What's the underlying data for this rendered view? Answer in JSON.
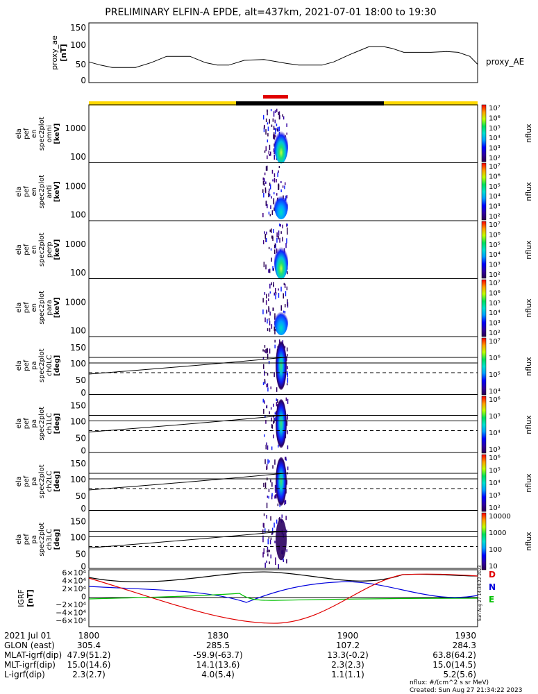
{
  "title": "PRELIMINARY ELFIN-A EPDE, alt=437km, 2021-07-01 18:00 to 19:30",
  "ae_panel": {
    "ylabel": [
      "proxy_ae",
      "[nT]"
    ],
    "yticks": [
      "150",
      "100",
      "50",
      "0"
    ],
    "ylim": [
      0,
      150
    ],
    "legend": "proxy_AE",
    "series": [
      [
        0,
        52
      ],
      [
        3,
        44
      ],
      [
        6,
        38
      ],
      [
        12,
        38
      ],
      [
        16,
        50
      ],
      [
        20,
        66
      ],
      [
        26,
        66
      ],
      [
        30,
        50
      ],
      [
        33,
        44
      ],
      [
        36,
        44
      ],
      [
        40,
        56
      ],
      [
        45,
        58
      ],
      [
        51,
        48
      ],
      [
        54,
        44
      ],
      [
        57,
        44
      ],
      [
        60,
        44
      ],
      [
        63,
        52
      ],
      [
        67,
        70
      ],
      [
        72,
        90
      ],
      [
        76,
        90
      ],
      [
        78,
        86
      ],
      [
        81,
        76
      ],
      [
        88,
        76
      ],
      [
        92,
        78
      ],
      [
        95,
        76
      ],
      [
        98,
        66
      ],
      [
        100,
        46
      ]
    ]
  },
  "status_bar": {
    "colors": {
      "science": "#ffd700",
      "dark": "#000000",
      "marker": "#e00000"
    }
  },
  "energy_panels": [
    {
      "ylabel": [
        "ela",
        "pef",
        "en",
        "spec2plot",
        "omni",
        "[keV]"
      ]
    },
    {
      "ylabel": [
        "ela",
        "pef",
        "en",
        "spec2plot",
        "anti",
        "[keV]"
      ]
    },
    {
      "ylabel": [
        "ela",
        "pef",
        "en",
        "spec2plot",
        "perp",
        "[keV]"
      ]
    },
    {
      "ylabel": [
        "ela",
        "pef",
        "en",
        "spec2plot",
        "para",
        "[keV]"
      ]
    }
  ],
  "energy_yticks": [
    "1000",
    "100"
  ],
  "pitch_panels": [
    {
      "ylabel": [
        "ela",
        "pef",
        "pa",
        "spec2plot",
        "ch0LC",
        "[deg]"
      ]
    },
    {
      "ylabel": [
        "ela",
        "pef",
        "pa",
        "spec2plot",
        "ch1LC",
        "[deg]"
      ]
    },
    {
      "ylabel": [
        "ela",
        "pef",
        "pa",
        "spec2plot",
        "ch2LC",
        "[deg]"
      ]
    },
    {
      "ylabel": [
        "ela",
        "pef",
        "pa",
        "spec2plot",
        "ch3LC",
        "[deg]"
      ]
    }
  ],
  "pitch_yticks": [
    "150",
    "100",
    "50",
    "0"
  ],
  "colorbar_label": "nflux",
  "colorbar_ticks": {
    "bar1": [
      "10⁷",
      "10⁶",
      "10⁵",
      "10⁴",
      "10³",
      "10²"
    ],
    "bar2": [
      "10⁷",
      "10⁶",
      "10⁵",
      "10⁴",
      "10³",
      "10²"
    ],
    "bar3": [
      "10⁷",
      "10⁶",
      "10⁵",
      "10⁴",
      "10³",
      "10²"
    ],
    "bar4": [
      "10⁷",
      "10⁶",
      "10⁵",
      "10⁴",
      "10³",
      "10²"
    ],
    "bar5": [
      "10⁷",
      "10⁶",
      "10⁵",
      "10⁴"
    ],
    "bar6": [
      "10⁶",
      "10⁵",
      "10⁴",
      "10³"
    ],
    "bar7": [
      "10⁶",
      "10⁵",
      "10⁴",
      "10³",
      "10²"
    ],
    "bar8": [
      "10000",
      "1000",
      "100",
      "10"
    ]
  },
  "grf_panel": {
    "ylabel": [
      "IGRF",
      "[nT]"
    ],
    "yticks": [
      "6×10⁴",
      "4×10⁴",
      "2×10⁴",
      "0",
      "−2×10⁴",
      "−4×10⁴",
      "−6×10⁴"
    ],
    "legend": [
      "D",
      "N",
      "E"
    ],
    "colors": {
      "D": "#e00000",
      "N": "#0000dd",
      "E": "#00c000",
      "total": "#000000"
    },
    "stamp": "Sun Aug 27 14:34:22 2023"
  },
  "chart_data": {
    "type": "heatmap",
    "time_range": [
      "2021-07-01 18:00",
      "2021-07-01 19:30"
    ],
    "x_ticks": [
      "1800",
      "1830",
      "1900",
      "1930"
    ],
    "ephemeris": {
      "row_labels": [
        "2021 Jul 01",
        "GLON (east)",
        "MLAT-igrf(dip)",
        "MLT-igrf(dip)",
        "L-igrf(dip)"
      ],
      "columns": [
        [
          "1800",
          "305.4",
          "47.9(51.2)",
          "15.0(14.6)",
          "2.3(2.7)"
        ],
        [
          "1830",
          "285.5",
          "-59.9(-63.7)",
          "14.1(13.6)",
          "4.0(5.4)"
        ],
        [
          "1900",
          "107.2",
          "13.3(-0.2)",
          "2.3(2.3)",
          "1.1(1.1)"
        ],
        [
          "1930",
          "284.3",
          "63.8(64.2)",
          "15.0(14.5)",
          "5.2(5.6)"
        ]
      ]
    },
    "units_note": "nflux: #/(cm^2 s sr MeV)",
    "created": "Created: Sun Aug 27 21:34:22 2023"
  }
}
